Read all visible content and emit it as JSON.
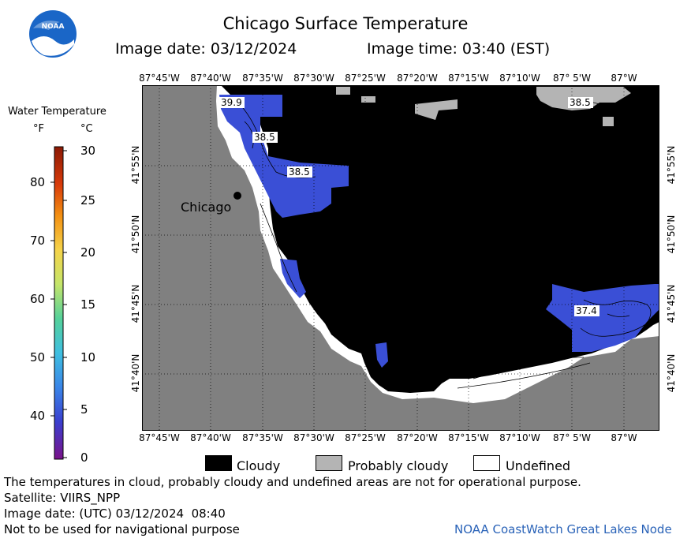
{
  "header": {
    "title": "Chicago Surface Temperature",
    "image_date": "Image date: 03/12/2024",
    "image_time": "Image time: 03:40 (EST)"
  },
  "logo": {
    "text": "NOAA"
  },
  "colorbar": {
    "title": "Water Temperature",
    "unit_f": "°F",
    "unit_c": "°C",
    "f_ticks": [
      "80",
      "70",
      "60",
      "50",
      "40"
    ],
    "c_ticks": [
      "30",
      "25",
      "20",
      "15",
      "10",
      "5",
      "0"
    ]
  },
  "map": {
    "lon_labels": [
      "87°45'W",
      "87°40'W",
      "87°35'W",
      "87°30'W",
      "87°25'W",
      "87°20'W",
      "87°15'W",
      "87°10'W",
      "87° 5'W",
      "87°W"
    ],
    "lat_labels": [
      "41°55'N",
      "41°50'N",
      "41°45'N",
      "41°40'N"
    ],
    "city_label": "Chicago",
    "contour_labels": [
      "39.9",
      "38.5",
      "38.5",
      "38.5",
      "37.4"
    ],
    "colors": {
      "land": "#808080",
      "cloudy": "#000000",
      "probably_cloudy": "#b4b4b4",
      "undefined": "#ffffff",
      "water_cold": "#3a4fd6"
    }
  },
  "legend": {
    "cloudy": "Cloudy",
    "probably_cloudy": "Probably cloudy",
    "undefined": "Undefined"
  },
  "footer": {
    "disclaimer": "The temperatures in cloud, probably cloudy and undefined areas are not for operational purpose.",
    "satellite": "Satellite: VIIRS_NPP",
    "utc_date": "Image date: (UTC) 03/12/2024  08:40",
    "nav_warning": "Not to be used for navigational purpose",
    "credit": "NOAA CoastWatch Great Lakes Node"
  }
}
